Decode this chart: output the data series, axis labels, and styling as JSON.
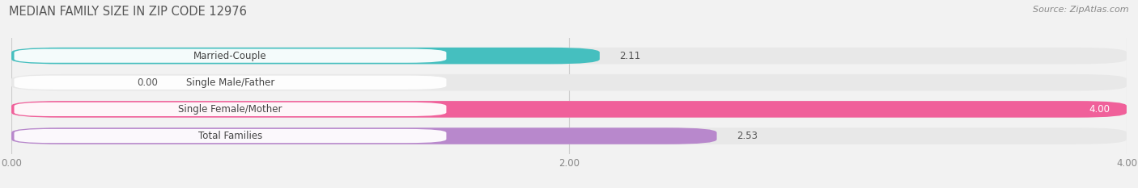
{
  "title": "MEDIAN FAMILY SIZE IN ZIP CODE 12976",
  "source": "Source: ZipAtlas.com",
  "categories": [
    "Married-Couple",
    "Single Male/Father",
    "Single Female/Mother",
    "Total Families"
  ],
  "values": [
    2.11,
    0.0,
    4.0,
    2.53
  ],
  "bar_colors": [
    "#45bfbf",
    "#a0b8d8",
    "#f0609a",
    "#b888cc"
  ],
  "xlim": [
    0,
    4.0
  ],
  "xticks": [
    0.0,
    2.0,
    4.0
  ],
  "xtick_labels": [
    "0.00",
    "2.00",
    "4.00"
  ],
  "bar_height": 0.62,
  "background_color": "#f2f2f2",
  "bar_bg_color": "#e8e8e8",
  "figsize": [
    14.06,
    2.33
  ],
  "dpi": 100
}
